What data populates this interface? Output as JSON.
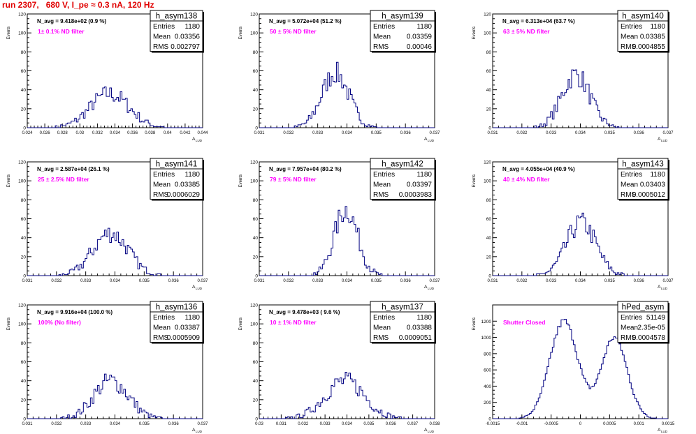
{
  "page_title": "run 2307,   680 V, I_pe ≈ 0.3 nA, 120 Hz",
  "colors": {
    "line": "#000080",
    "note": "#ff00ff",
    "title": "#e00000"
  },
  "axis_labels": {
    "y": "Events",
    "x": "A",
    "x_sub": "LUD"
  },
  "stat_labels": [
    "Entries",
    "Mean",
    "RMS"
  ],
  "chart_data": [
    {
      "type": "histogram",
      "name": "h_asym138",
      "navg": "N_avg = 9.418e+02 (0.9 %)",
      "note": "1± 0.1% ND filter",
      "entries": "1180",
      "mean": "0.03356",
      "rms": "0.002797",
      "xlim": [
        0.024,
        0.044
      ],
      "ylim": [
        0,
        120
      ],
      "yticks": [
        0,
        20,
        40,
        60,
        80,
        100,
        120
      ],
      "xticks": [
        "0.024",
        "0.026",
        "0.028",
        "0.03",
        "0.032",
        "0.034",
        "0.036",
        "0.038",
        "0.04",
        "0.042",
        "0.044"
      ],
      "bins": 100,
      "peaks": [
        [
          0.0334,
          0.0022,
          36
        ]
      ]
    },
    {
      "type": "histogram",
      "name": "h_asym139",
      "navg": "N_avg = 5.072e+04 (51.2 %)",
      "note": "50 ± 5% ND filter",
      "entries": "1180",
      "mean": "0.03359",
      "rms": "0.00046",
      "xlim": [
        0.031,
        0.037
      ],
      "ylim": [
        0,
        120
      ],
      "yticks": [
        0,
        20,
        40,
        60,
        80,
        100,
        120
      ],
      "xticks": [
        "0.031",
        "0.032",
        "0.033",
        "0.034",
        "0.035",
        "0.036",
        "0.037"
      ],
      "bins": 100,
      "peaks": [
        [
          0.0336,
          0.00046,
          58
        ]
      ]
    },
    {
      "type": "histogram",
      "name": "h_asym140",
      "navg": "N_avg = 6.313e+04 (63.7 %)",
      "note": "63 ± 5% ND filter",
      "entries": "1180",
      "mean": "0.03385",
      "rms": "0.0004855",
      "xlim": [
        0.031,
        0.037
      ],
      "ylim": [
        0,
        120
      ],
      "yticks": [
        0,
        20,
        40,
        60,
        80,
        100,
        120
      ],
      "xticks": [
        "0.031",
        "0.032",
        "0.033",
        "0.034",
        "0.035",
        "0.036",
        "0.037"
      ],
      "bins": 100,
      "peaks": [
        [
          0.03385,
          0.00048,
          56
        ]
      ]
    },
    {
      "type": "histogram",
      "name": "h_asym141",
      "navg": "N_avg = 2.587e+04 (26.1 %)",
      "note": "25 ± 2.5% ND filter",
      "entries": "1180",
      "mean": "0.03385",
      "rms": "0.0006029",
      "xlim": [
        0.031,
        0.037
      ],
      "ylim": [
        0,
        120
      ],
      "yticks": [
        0,
        20,
        40,
        60,
        80,
        100,
        120
      ],
      "xticks": [
        "0.031",
        "0.032",
        "0.033",
        "0.034",
        "0.035",
        "0.036",
        "0.037"
      ],
      "bins": 100,
      "peaks": [
        [
          0.03385,
          0.0006,
          45
        ]
      ]
    },
    {
      "type": "histogram",
      "name": "h_asym142",
      "navg": "N_avg = 7.957e+04 (80.2 %)",
      "note": "79 ± 5% ND filter",
      "entries": "1180",
      "mean": "0.03397",
      "rms": "0.0003983",
      "xlim": [
        0.031,
        0.037
      ],
      "ylim": [
        0,
        120
      ],
      "yticks": [
        0,
        20,
        40,
        60,
        80,
        100,
        120
      ],
      "xticks": [
        "0.031",
        "0.032",
        "0.033",
        "0.034",
        "0.035",
        "0.036",
        "0.037"
      ],
      "bins": 100,
      "peaks": [
        [
          0.03397,
          0.0004,
          70
        ]
      ]
    },
    {
      "type": "histogram",
      "name": "h_asym143",
      "navg": "N_avg = 4.055e+04 (40.9 %)",
      "note": "40 ± 4% ND filter",
      "entries": "1180",
      "mean": "0.03403",
      "rms": "0.0005012",
      "xlim": [
        0.031,
        0.037
      ],
      "ylim": [
        0,
        120
      ],
      "yticks": [
        0,
        20,
        40,
        60,
        80,
        100,
        120
      ],
      "xticks": [
        "0.031",
        "0.032",
        "0.033",
        "0.034",
        "0.035",
        "0.036",
        "0.037"
      ],
      "bins": 100,
      "peaks": [
        [
          0.03403,
          0.0005,
          56
        ]
      ]
    },
    {
      "type": "histogram",
      "name": "h_asym136",
      "navg": "N_avg = 9.916e+04 (100.0 %)",
      "note": "100% (No filter)",
      "entries": "1180",
      "mean": "0.03387",
      "rms": "0.0005909",
      "xlim": [
        0.031,
        0.037
      ],
      "ylim": [
        0,
        120
      ],
      "yticks": [
        0,
        20,
        40,
        60,
        80,
        100,
        120
      ],
      "xticks": [
        "0.031",
        "0.032",
        "0.033",
        "0.034",
        "0.035",
        "0.036",
        "0.037"
      ],
      "bins": 100,
      "peaks": [
        [
          0.03387,
          0.00059,
          40
        ]
      ]
    },
    {
      "type": "histogram",
      "name": "h_asym137",
      "navg": "N_avg = 9.478e+03 ( 9.6 %)",
      "note": "10 ± 1% ND filter",
      "entries": "1180",
      "mean": "0.03388",
      "rms": "0.0009051",
      "xlim": [
        0.03,
        0.038
      ],
      "ylim": [
        0,
        120
      ],
      "yticks": [
        0,
        20,
        40,
        60,
        80,
        100,
        120
      ],
      "xticks": [
        "0.03",
        "0.031",
        "0.032",
        "0.033",
        "0.034",
        "0.035",
        "0.036",
        "0.037",
        "0.038"
      ],
      "bins": 100,
      "peaks": [
        [
          0.0339,
          0.0009,
          40
        ]
      ]
    },
    {
      "type": "histogram",
      "name": "hPed_asym",
      "navg": "",
      "note": "Shutter Closed",
      "entries": "51149",
      "mean": "2.35e-05",
      "rms": "0.0004578",
      "xlim": [
        -0.0015,
        0.0015
      ],
      "ylim": [
        0,
        1400
      ],
      "yticks": [
        0,
        200,
        400,
        600,
        800,
        1000,
        1200
      ],
      "xticks": [
        "-0.0015",
        "-0.001",
        "-0.0005",
        "0",
        "0.0005",
        "0.001",
        "0.0015"
      ],
      "bins": 100,
      "peaks": [
        [
          -0.00028,
          0.00024,
          1200
        ],
        [
          0.00058,
          0.00022,
          1000
        ]
      ]
    }
  ]
}
